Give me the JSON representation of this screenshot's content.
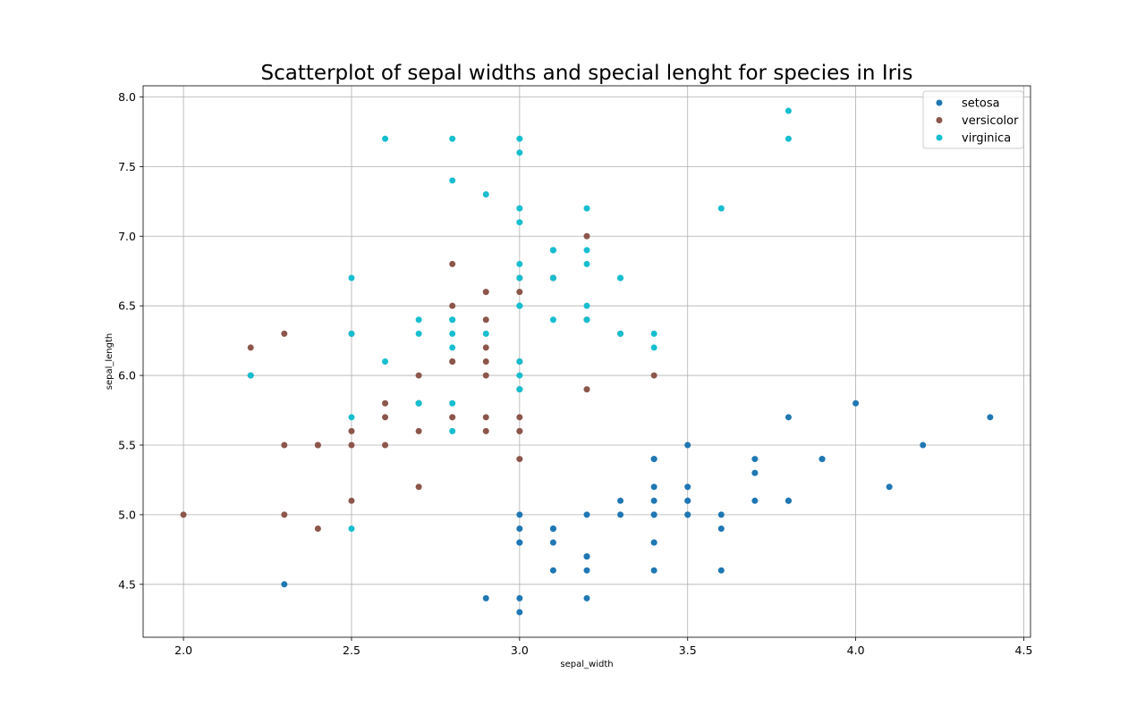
{
  "chart_data": {
    "type": "scatter",
    "title": "Scatterplot of sepal widths and special lenght for species in Iris",
    "xlabel": "sepal_width",
    "ylabel": "sepal_length",
    "xlim": [
      1.88,
      4.52
    ],
    "ylim": [
      4.12,
      8.08
    ],
    "xticks": [
      "2.0",
      "2.5",
      "3.0",
      "3.5",
      "4.0",
      "4.5"
    ],
    "yticks": [
      "4.5",
      "5.0",
      "5.5",
      "6.0",
      "6.5",
      "7.0",
      "7.5",
      "8.0"
    ],
    "grid": true,
    "legend_position": "top-right",
    "series": [
      {
        "name": "setosa",
        "color": "#1f77b4",
        "points": [
          [
            3.5,
            5.1
          ],
          [
            3.0,
            4.9
          ],
          [
            3.2,
            4.7
          ],
          [
            3.1,
            4.6
          ],
          [
            3.6,
            5.0
          ],
          [
            3.9,
            5.4
          ],
          [
            3.4,
            4.6
          ],
          [
            3.4,
            5.0
          ],
          [
            2.9,
            4.4
          ],
          [
            3.1,
            4.9
          ],
          [
            3.7,
            5.4
          ],
          [
            3.4,
            4.8
          ],
          [
            3.0,
            4.8
          ],
          [
            3.0,
            4.3
          ],
          [
            4.0,
            5.8
          ],
          [
            4.4,
            5.7
          ],
          [
            3.9,
            5.4
          ],
          [
            3.5,
            5.1
          ],
          [
            3.8,
            5.7
          ],
          [
            3.8,
            5.1
          ],
          [
            3.4,
            5.4
          ],
          [
            3.7,
            5.1
          ],
          [
            3.6,
            4.6
          ],
          [
            3.3,
            5.1
          ],
          [
            3.4,
            4.8
          ],
          [
            3.0,
            5.0
          ],
          [
            3.4,
            5.0
          ],
          [
            3.5,
            5.2
          ],
          [
            3.4,
            5.2
          ],
          [
            3.2,
            4.7
          ],
          [
            3.1,
            4.8
          ],
          [
            3.4,
            5.4
          ],
          [
            4.1,
            5.2
          ],
          [
            4.2,
            5.5
          ],
          [
            3.1,
            4.9
          ],
          [
            3.2,
            5.0
          ],
          [
            3.5,
            5.5
          ],
          [
            3.6,
            4.9
          ],
          [
            3.0,
            4.4
          ],
          [
            3.4,
            5.1
          ],
          [
            3.5,
            5.0
          ],
          [
            2.3,
            4.5
          ],
          [
            3.2,
            4.4
          ],
          [
            3.5,
            5.0
          ],
          [
            3.8,
            5.1
          ],
          [
            3.0,
            4.8
          ],
          [
            3.8,
            5.1
          ],
          [
            3.2,
            4.6
          ],
          [
            3.7,
            5.3
          ],
          [
            3.3,
            5.0
          ]
        ]
      },
      {
        "name": "versicolor",
        "color": "#8c564b",
        "points": [
          [
            3.2,
            7.0
          ],
          [
            3.2,
            6.4
          ],
          [
            3.1,
            6.9
          ],
          [
            2.3,
            5.5
          ],
          [
            2.8,
            6.5
          ],
          [
            2.8,
            5.7
          ],
          [
            3.3,
            6.3
          ],
          [
            2.4,
            4.9
          ],
          [
            2.9,
            6.6
          ],
          [
            2.7,
            5.2
          ],
          [
            2.0,
            5.0
          ],
          [
            3.0,
            5.9
          ],
          [
            2.2,
            6.0
          ],
          [
            2.9,
            6.1
          ],
          [
            2.9,
            5.6
          ],
          [
            3.1,
            6.7
          ],
          [
            3.0,
            5.6
          ],
          [
            2.7,
            5.8
          ],
          [
            2.2,
            6.2
          ],
          [
            2.5,
            5.6
          ],
          [
            3.2,
            5.9
          ],
          [
            2.8,
            6.1
          ],
          [
            2.5,
            6.3
          ],
          [
            2.8,
            6.1
          ],
          [
            2.9,
            6.4
          ],
          [
            3.0,
            6.6
          ],
          [
            2.8,
            6.8
          ],
          [
            3.0,
            6.7
          ],
          [
            2.9,
            6.0
          ],
          [
            2.6,
            5.7
          ],
          [
            2.4,
            5.5
          ],
          [
            2.4,
            5.5
          ],
          [
            2.7,
            5.8
          ],
          [
            2.7,
            6.0
          ],
          [
            3.0,
            5.4
          ],
          [
            3.4,
            6.0
          ],
          [
            3.1,
            6.7
          ],
          [
            2.3,
            6.3
          ],
          [
            3.0,
            5.6
          ],
          [
            2.5,
            5.5
          ],
          [
            2.6,
            5.5
          ],
          [
            3.0,
            6.1
          ],
          [
            2.6,
            5.8
          ],
          [
            2.3,
            5.0
          ],
          [
            2.7,
            5.6
          ],
          [
            3.0,
            5.7
          ],
          [
            2.9,
            5.7
          ],
          [
            2.9,
            6.2
          ],
          [
            2.5,
            5.1
          ],
          [
            2.8,
            5.7
          ]
        ]
      },
      {
        "name": "virginica",
        "color": "#17becf",
        "points": [
          [
            3.3,
            6.3
          ],
          [
            2.7,
            5.8
          ],
          [
            3.0,
            7.1
          ],
          [
            2.9,
            6.3
          ],
          [
            3.0,
            6.5
          ],
          [
            3.0,
            7.6
          ],
          [
            2.5,
            4.9
          ],
          [
            2.9,
            7.3
          ],
          [
            2.5,
            6.7
          ],
          [
            3.6,
            7.2
          ],
          [
            3.2,
            6.5
          ],
          [
            2.7,
            6.4
          ],
          [
            3.0,
            6.8
          ],
          [
            2.5,
            5.7
          ],
          [
            2.8,
            5.8
          ],
          [
            3.2,
            6.4
          ],
          [
            3.0,
            6.5
          ],
          [
            3.8,
            7.7
          ],
          [
            2.6,
            7.7
          ],
          [
            2.2,
            6.0
          ],
          [
            3.2,
            6.9
          ],
          [
            2.8,
            5.6
          ],
          [
            2.8,
            7.7
          ],
          [
            2.7,
            6.3
          ],
          [
            3.3,
            6.7
          ],
          [
            3.2,
            7.2
          ],
          [
            2.8,
            6.2
          ],
          [
            3.0,
            6.1
          ],
          [
            2.8,
            6.4
          ],
          [
            3.0,
            7.2
          ],
          [
            2.8,
            7.4
          ],
          [
            3.8,
            7.9
          ],
          [
            2.8,
            6.4
          ],
          [
            2.8,
            6.3
          ],
          [
            2.6,
            6.1
          ],
          [
            3.0,
            7.7
          ],
          [
            3.4,
            6.3
          ],
          [
            3.1,
            6.4
          ],
          [
            3.0,
            6.0
          ],
          [
            3.1,
            6.9
          ],
          [
            3.1,
            6.7
          ],
          [
            3.1,
            6.9
          ],
          [
            2.7,
            5.8
          ],
          [
            3.2,
            6.8
          ],
          [
            3.3,
            6.7
          ],
          [
            3.0,
            6.7
          ],
          [
            2.5,
            6.3
          ],
          [
            3.0,
            6.5
          ],
          [
            3.4,
            6.2
          ],
          [
            3.0,
            5.9
          ]
        ]
      }
    ]
  }
}
